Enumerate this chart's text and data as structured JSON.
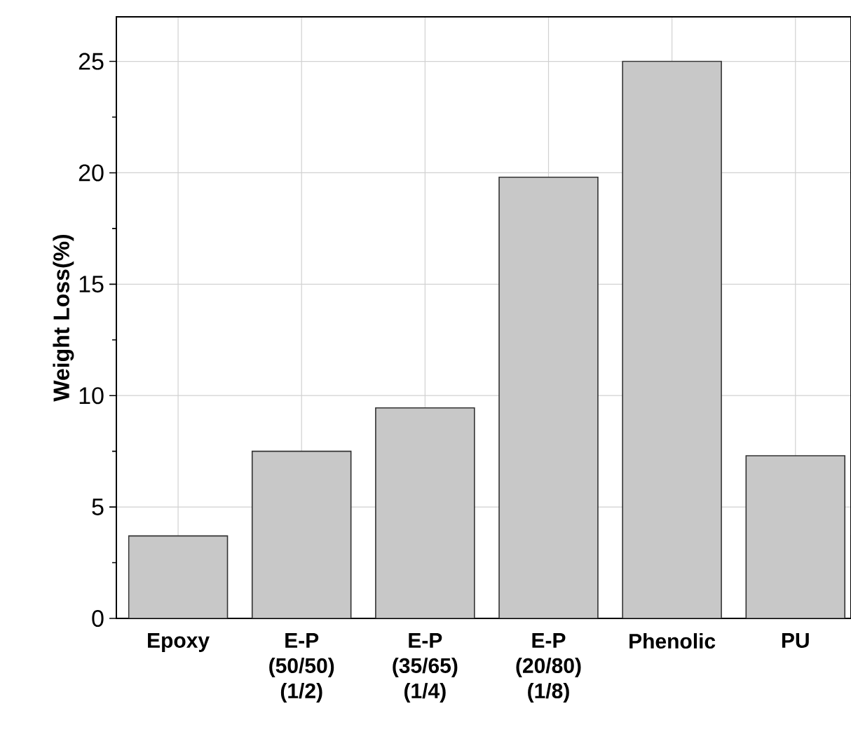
{
  "chart_data": {
    "type": "bar",
    "ylabel": "Weight Loss(%)",
    "categories": [
      "Epoxy",
      "E-P (50/50) (1/2)",
      "E-P (35/65) (1/4)",
      "E-P (20/80) (1/8)",
      "Phenolic",
      "PU"
    ],
    "values": [
      3.7,
      7.5,
      9.45,
      19.8,
      25,
      7.3
    ],
    "color": "#c8c8c8",
    "ylim": [
      0,
      27
    ],
    "yticks": [
      0,
      5,
      10,
      15,
      20,
      25
    ],
    "grid": true
  }
}
